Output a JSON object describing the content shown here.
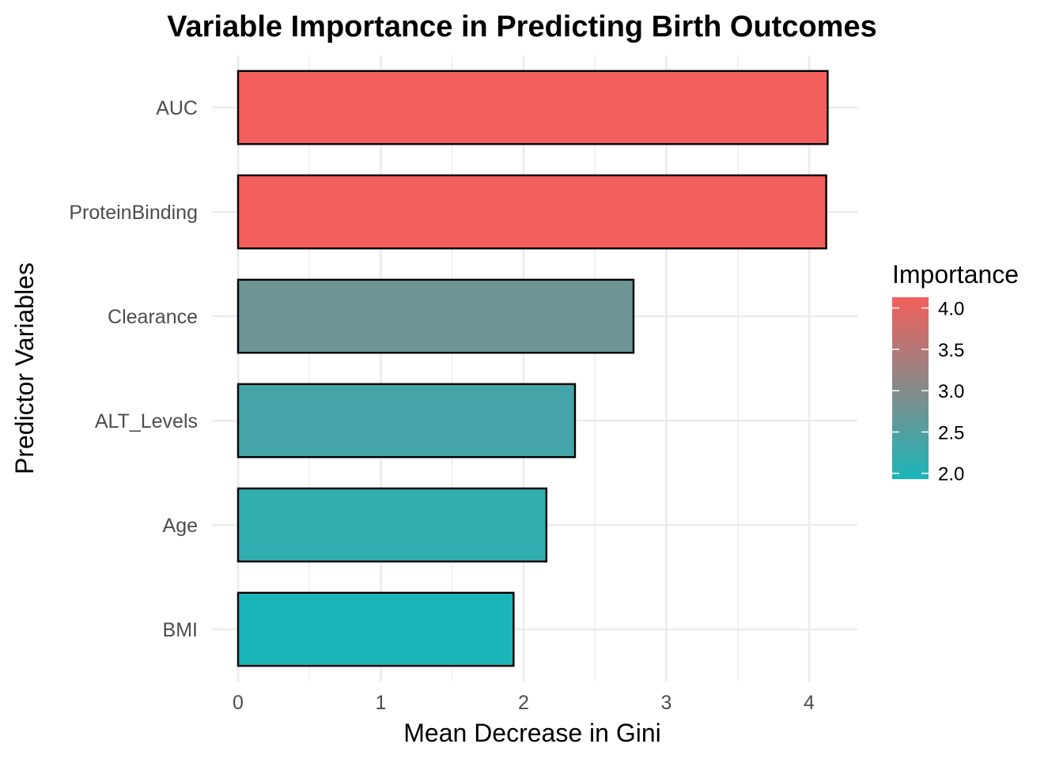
{
  "chart_data": {
    "type": "bar",
    "orientation": "horizontal",
    "title": "Variable Importance in Predicting Birth Outcomes",
    "xlabel": "Mean Decrease in Gini",
    "ylabel": "Predictor Variables",
    "categories": [
      "AUC",
      "ProteinBinding",
      "Clearance",
      "ALT_Levels",
      "Age",
      "BMI"
    ],
    "values": [
      4.13,
      4.12,
      2.77,
      2.36,
      2.16,
      1.93
    ],
    "xlim": [
      0,
      4.3
    ],
    "x_ticks": [
      "0",
      "1",
      "2",
      "3",
      "4"
    ],
    "grid": true,
    "legend": {
      "title": "Importance",
      "position": "right",
      "type": "colorbar",
      "range": [
        1.93,
        4.13
      ],
      "ticks": [
        "2.0",
        "2.5",
        "3.0",
        "3.5",
        "4.0"
      ],
      "low_color": "#1AB5B9",
      "high_color": "#F35F5C"
    },
    "bar_outline_color": "#000000"
  }
}
